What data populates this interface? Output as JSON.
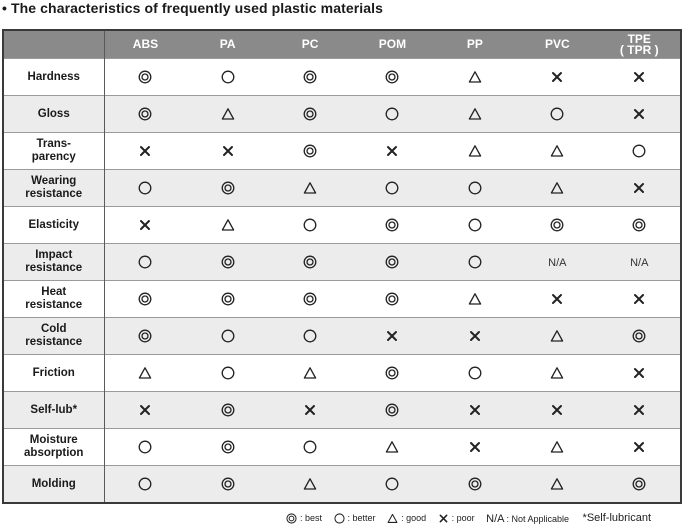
{
  "title": "• The characteristics of frequently used plastic materials",
  "columns": [
    "ABS",
    "PA",
    "PC",
    "POM",
    "PP",
    "PVC",
    "TPE\n( TPR )"
  ],
  "column_line1": [
    "ABS",
    "PA",
    "PC",
    "POM",
    "PP",
    "PVC",
    "TPE"
  ],
  "column_line2": [
    "",
    "",
    "",
    "",
    "",
    "",
    "( TPR )"
  ],
  "rows": [
    {
      "label1": "Hardness",
      "label2": "",
      "values": [
        "best",
        "better",
        "best",
        "best",
        "good",
        "poor",
        "poor"
      ]
    },
    {
      "label1": "Gloss",
      "label2": "",
      "values": [
        "best",
        "good",
        "best",
        "better",
        "good",
        "better",
        "poor"
      ]
    },
    {
      "label1": "Trans-",
      "label2": "parency",
      "values": [
        "poor",
        "poor",
        "best",
        "poor",
        "good",
        "good",
        "better"
      ]
    },
    {
      "label1": "Wearing",
      "label2": "resistance",
      "values": [
        "better",
        "best",
        "good",
        "better",
        "better",
        "good",
        "poor"
      ]
    },
    {
      "label1": "Elasticity",
      "label2": "",
      "values": [
        "poor",
        "good",
        "better",
        "best",
        "better",
        "best",
        "best"
      ]
    },
    {
      "label1": "Impact",
      "label2": "resistance",
      "values": [
        "better",
        "best",
        "best",
        "best",
        "better",
        "N/A",
        "N/A"
      ]
    },
    {
      "label1": "Heat",
      "label2": "resistance",
      "values": [
        "best",
        "best",
        "best",
        "best",
        "good",
        "poor",
        "poor"
      ]
    },
    {
      "label1": "Cold",
      "label2": "resistance",
      "values": [
        "best",
        "better",
        "better",
        "poor",
        "poor",
        "good",
        "best"
      ]
    },
    {
      "label1": "Friction",
      "label2": "",
      "values": [
        "good",
        "better",
        "good",
        "best",
        "better",
        "good",
        "poor"
      ]
    },
    {
      "label1": "Self-lub*",
      "label2": "",
      "values": [
        "poor",
        "best",
        "poor",
        "best",
        "poor",
        "poor",
        "poor"
      ]
    },
    {
      "label1": "Moisture",
      "label2": "absorption",
      "values": [
        "better",
        "best",
        "better",
        "good",
        "poor",
        "good",
        "poor"
      ]
    },
    {
      "label1": "Molding",
      "label2": "",
      "values": [
        "better",
        "best",
        "good",
        "better",
        "best",
        "good",
        "best"
      ]
    }
  ],
  "legend": {
    "best": ": best",
    "better": ": better",
    "good": ": good",
    "poor": ": poor",
    "na_key": "N/A",
    "na_text": ": Not Applicable",
    "note": "*Self-lubricant"
  },
  "symbols": {
    "best": "double-circle-icon",
    "better": "circle-icon",
    "good": "triangle-icon",
    "poor": "cross-icon"
  },
  "colors": {
    "header_bg": "#8a8a8a",
    "row_shade": "#ececec",
    "border": "#3a3a3a"
  }
}
